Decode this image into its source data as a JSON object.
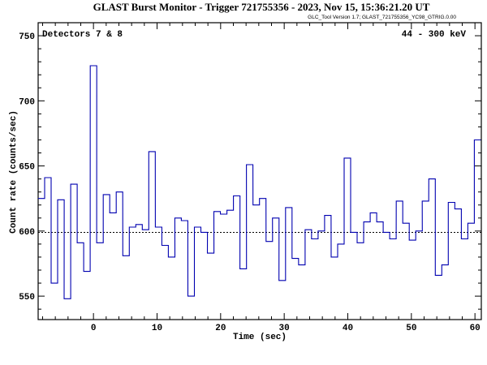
{
  "chart_data": {
    "type": "line",
    "step": true,
    "title": "GLAST Burst Monitor  -  Trigger 721755356  -  2023, Nov 15, 15:36:21.20 UT",
    "subtitle": "GLC_Tool Version 1.7; GLAST_721755356_YC98_GTRIG.0.00",
    "annotation_left": "Detectors 7 & 8",
    "annotation_right": "44 - 300 keV",
    "xlabel": "Time (sec)",
    "ylabel": "Count rate (counts/sec)",
    "xlim": [
      -8.7,
      61
    ],
    "ylim": [
      532,
      760
    ],
    "xticks": [
      0,
      10,
      20,
      30,
      40,
      50,
      60
    ],
    "yticks": [
      550,
      600,
      650,
      700,
      750
    ],
    "xtick_labels": [
      "0",
      "10",
      "20",
      "30",
      "40",
      "50",
      "60"
    ],
    "ytick_labels": [
      "550",
      "600",
      "650",
      "700",
      "750"
    ],
    "background_level": 599,
    "bin_width": 1.024,
    "series": [
      {
        "color": "#0000b0",
        "x": [
          -8.7,
          -7.68,
          -6.66,
          -5.63,
          -4.61,
          -3.58,
          -2.56,
          -1.54,
          -0.51,
          0.51,
          1.54,
          2.56,
          3.58,
          4.61,
          5.63,
          6.66,
          7.68,
          8.7,
          9.73,
          10.75,
          11.78,
          12.8,
          13.82,
          14.85,
          15.87,
          16.9,
          17.92,
          18.94,
          19.97,
          20.99,
          22.02,
          23.04,
          24.06,
          25.09,
          26.11,
          27.14,
          28.16,
          29.18,
          30.21,
          31.23,
          32.26,
          33.28,
          34.3,
          35.33,
          36.35,
          37.38,
          38.4,
          39.42,
          40.45,
          41.47,
          42.5,
          43.52,
          44.54,
          45.57,
          46.59,
          47.62,
          48.64,
          49.66,
          50.69,
          51.71,
          52.74,
          53.76,
          54.78,
          55.81,
          56.83,
          57.86,
          58.88,
          59.9
        ],
        "values": [
          625,
          641,
          560,
          624,
          548,
          636,
          591,
          569,
          727,
          591,
          628,
          614,
          630,
          581,
          603,
          605,
          601,
          661,
          603,
          589,
          580,
          610,
          608,
          550,
          603,
          599,
          583,
          615,
          613,
          616,
          627,
          571,
          651,
          620,
          625,
          592,
          610,
          562,
          618,
          579,
          574,
          601,
          594,
          600,
          612,
          580,
          590,
          656,
          599,
          591,
          607,
          614,
          607,
          599,
          594,
          623,
          606,
          593,
          600,
          623,
          640,
          566,
          574,
          622,
          617,
          594,
          606,
          670
        ]
      }
    ]
  }
}
